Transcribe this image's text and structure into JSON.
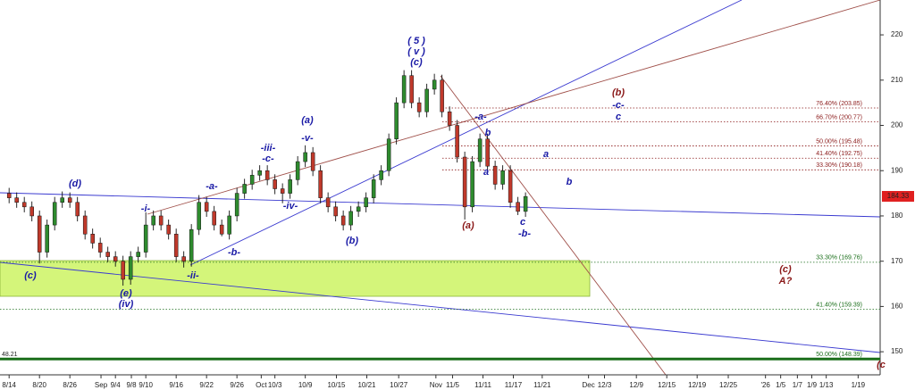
{
  "chart_data": {
    "type": "candlestick",
    "ylim": [
      144.9,
      227.7
    ],
    "yticks": [
      150,
      160,
      170,
      180,
      190,
      200,
      210,
      220
    ],
    "xlim": [
      -1.2,
      114.7
    ],
    "xticks": [
      {
        "value": 0,
        "label": "8/14"
      },
      {
        "value": 4,
        "label": "8/20"
      },
      {
        "value": 8,
        "label": "8/26"
      },
      {
        "value": 12.1,
        "label": "Sep"
      },
      {
        "value": 14,
        "label": "9/4"
      },
      {
        "value": 16.1,
        "label": "9/8"
      },
      {
        "value": 18,
        "label": "9/10"
      },
      {
        "value": 22,
        "label": "9/16"
      },
      {
        "value": 26,
        "label": "9/22"
      },
      {
        "value": 30,
        "label": "9/26"
      },
      {
        "value": 33.2,
        "label": "Oct"
      },
      {
        "value": 35,
        "label": "10/3"
      },
      {
        "value": 39,
        "label": "10/9"
      },
      {
        "value": 43.1,
        "label": "10/15"
      },
      {
        "value": 47.1,
        "label": "10/21"
      },
      {
        "value": 51.3,
        "label": "10/27"
      },
      {
        "value": 56.2,
        "label": "Nov"
      },
      {
        "value": 58.4,
        "label": "11/5"
      },
      {
        "value": 62.4,
        "label": "11/11"
      },
      {
        "value": 66.4,
        "label": "11/17"
      },
      {
        "value": 70.2,
        "label": "11/21"
      },
      {
        "value": 76.3,
        "label": "Dec"
      },
      {
        "value": 78.4,
        "label": "12/3"
      },
      {
        "value": 82.6,
        "label": "12/9"
      },
      {
        "value": 86.6,
        "label": "12/15"
      },
      {
        "value": 90.6,
        "label": "12/19"
      },
      {
        "value": 94.7,
        "label": "12/25"
      },
      {
        "value": 99.6,
        "label": "'26"
      },
      {
        "value": 101.6,
        "label": "1/5"
      },
      {
        "value": 103.8,
        "label": "1/7"
      },
      {
        "value": 105.7,
        "label": "1/9"
      },
      {
        "value": 107.6,
        "label": "1/13"
      },
      {
        "value": 111.8,
        "label": "1/19"
      }
    ],
    "up_color": "#2e8b2e",
    "down_color": "#c0392b",
    "ohlc": [
      [
        185,
        186.2,
        182.8,
        184
      ],
      [
        184,
        185.2,
        181.8,
        183
      ],
      [
        183,
        184.2,
        180.8,
        182
      ],
      [
        182,
        183.2,
        178.8,
        180
      ],
      [
        180,
        181.2,
        169.5,
        172
      ],
      [
        172,
        179.2,
        170.8,
        178
      ],
      [
        178,
        184.2,
        176.8,
        183
      ],
      [
        183,
        185.4,
        181.8,
        184
      ],
      [
        184,
        185.2,
        181.8,
        183
      ],
      [
        183,
        184.2,
        178.8,
        180
      ],
      [
        180,
        181.2,
        174.8,
        176
      ],
      [
        176,
        177.2,
        172.8,
        174
      ],
      [
        174,
        175.2,
        170.8,
        172
      ],
      [
        172,
        173.2,
        169.8,
        171
      ],
      [
        171,
        172.2,
        168.8,
        170
      ],
      [
        170,
        171.2,
        164.6,
        166
      ],
      [
        166,
        172.2,
        164.8,
        171
      ],
      [
        171,
        173.2,
        169.8,
        172
      ],
      [
        172,
        180.8,
        170.8,
        178
      ],
      [
        178,
        181.2,
        176.8,
        180
      ],
      [
        180,
        181.2,
        176.8,
        178
      ],
      [
        178,
        179.2,
        174.8,
        176
      ],
      [
        176,
        177.2,
        169.8,
        171
      ],
      [
        171,
        172.2,
        168.6,
        170
      ],
      [
        170,
        178.2,
        168.8,
        177
      ],
      [
        177,
        184.6,
        175.8,
        183
      ],
      [
        183,
        184.2,
        179.8,
        181
      ],
      [
        181,
        182.2,
        176.8,
        178
      ],
      [
        178,
        179.2,
        175.5,
        176
      ],
      [
        176,
        181.2,
        174.8,
        180
      ],
      [
        180,
        186.2,
        178.8,
        185
      ],
      [
        185,
        188.2,
        183.8,
        187
      ],
      [
        187,
        190.2,
        185.8,
        189
      ],
      [
        189,
        191.2,
        187.8,
        190
      ],
      [
        190,
        191.2,
        186.8,
        188
      ],
      [
        188,
        189.2,
        184.8,
        186
      ],
      [
        186,
        187.2,
        182.8,
        185
      ],
      [
        185,
        189.2,
        183.8,
        188
      ],
      [
        188,
        193.2,
        186.8,
        192
      ],
      [
        192,
        195.6,
        190.8,
        194
      ],
      [
        194,
        195.2,
        188.8,
        190
      ],
      [
        190,
        191.2,
        182.8,
        184
      ],
      [
        184,
        185.2,
        180.8,
        182
      ],
      [
        182,
        183.2,
        178.8,
        180
      ],
      [
        180,
        181.2,
        176.8,
        178
      ],
      [
        178,
        182.2,
        176.8,
        181
      ],
      [
        181,
        183.2,
        179.8,
        182
      ],
      [
        182,
        185.2,
        180.8,
        184
      ],
      [
        184,
        189.2,
        182.8,
        188
      ],
      [
        188,
        191.2,
        186.8,
        190
      ],
      [
        190,
        198.2,
        188.8,
        197
      ],
      [
        197,
        206.2,
        195.8,
        205
      ],
      [
        205,
        212.2,
        203.8,
        211
      ],
      [
        211,
        212.2,
        203.8,
        205
      ],
      [
        205,
        206.2,
        201.8,
        203
      ],
      [
        203,
        209.2,
        201.8,
        208
      ],
      [
        208,
        211.4,
        206.8,
        210
      ],
      [
        210,
        211.2,
        201.8,
        203
      ],
      [
        203,
        204.2,
        198.8,
        200
      ],
      [
        200,
        201.2,
        191.8,
        193
      ],
      [
        193,
        194.2,
        179.2,
        182
      ],
      [
        182,
        193.2,
        180.8,
        192
      ],
      [
        192,
        198.2,
        190.8,
        197
      ],
      [
        197,
        198.2,
        189.8,
        191
      ],
      [
        191,
        192.2,
        185.8,
        187
      ],
      [
        187,
        191.2,
        185.8,
        190
      ],
      [
        190,
        191.2,
        181.8,
        183
      ],
      [
        183,
        184.2,
        180.2,
        181
      ],
      [
        181,
        185.2,
        179.8,
        184.3
      ]
    ],
    "last_price": 184.33,
    "last_price_color": "#e02020",
    "left_label": "48.21",
    "fib_levels": [
      {
        "label": "76.40% (203.85)",
        "value": 203.85,
        "color": "#8b1a1a"
      },
      {
        "label": "66.70% (200.77)",
        "value": 200.77,
        "color": "#8b1a1a"
      },
      {
        "label": "50.00% (195.48)",
        "value": 195.48,
        "color": "#8b1a1a"
      },
      {
        "label": "41.40% (192.75)",
        "value": 192.75,
        "color": "#8b1a1a"
      },
      {
        "label": "33.30% (190.18)",
        "value": 190.18,
        "color": "#8b1a1a"
      },
      {
        "label": "33.30% (169.76)",
        "value": 169.76,
        "color": "#1a6e1a"
      },
      {
        "label": "41.40% (159.39)",
        "value": 159.39,
        "color": "#1a6e1a"
      },
      {
        "label": "50.00% (148.39)",
        "value": 148.39,
        "color": "#1a6e1a"
      }
    ],
    "annotations": [
      {
        "text": "( 5 )",
        "color": "#1a1aa6"
      },
      {
        "text": "( v )",
        "color": "#1a1aa6"
      },
      {
        "text": "(c)",
        "color": "#1a1aa6"
      },
      {
        "text": "(d)",
        "color": "#1a1aa6"
      },
      {
        "text": "(c)",
        "color": "#1a1aa6"
      },
      {
        "text": "(e)",
        "color": "#1a1aa6"
      },
      {
        "text": "(iv)",
        "color": "#1a1aa6"
      },
      {
        "text": "-i-",
        "color": "#1a1aa6"
      },
      {
        "text": "-ii-",
        "color": "#1a1aa6"
      },
      {
        "text": "-a-",
        "color": "#1a1aa6"
      },
      {
        "text": "-b-",
        "color": "#1a1aa6"
      },
      {
        "text": "-iii-",
        "color": "#1a1aa6"
      },
      {
        "text": "-c-",
        "color": "#1a1aa6"
      },
      {
        "text": "-iv-",
        "color": "#1a1aa6"
      },
      {
        "text": "(a)",
        "color": "#1a1aa6"
      },
      {
        "text": "-v-",
        "color": "#1a1aa6"
      },
      {
        "text": "(b)",
        "color": "#1a1aa6"
      },
      {
        "text": "(a)",
        "color": "#8b1a1a"
      },
      {
        "text": "-a-",
        "color": "#1a1aa6"
      },
      {
        "text": "b",
        "color": "#1a1aa6"
      },
      {
        "text": "a",
        "color": "#1a1aa6"
      },
      {
        "text": "c",
        "color": "#1a1aa6"
      },
      {
        "text": "-b-",
        "color": "#1a1aa6"
      },
      {
        "text": "a",
        "color": "#1a1aa6"
      },
      {
        "text": "b",
        "color": "#1a1aa6"
      },
      {
        "text": "(b)",
        "color": "#8b1a1a"
      },
      {
        "text": "-c-",
        "color": "#1a1aa6"
      },
      {
        "text": "c",
        "color": "#1a1aa6"
      },
      {
        "text": "(c)",
        "color": "#8b1a1a"
      },
      {
        "text": "A?",
        "color": "#8b1a1a"
      },
      {
        "text": "(c",
        "color": "#8b1a1a"
      }
    ]
  }
}
